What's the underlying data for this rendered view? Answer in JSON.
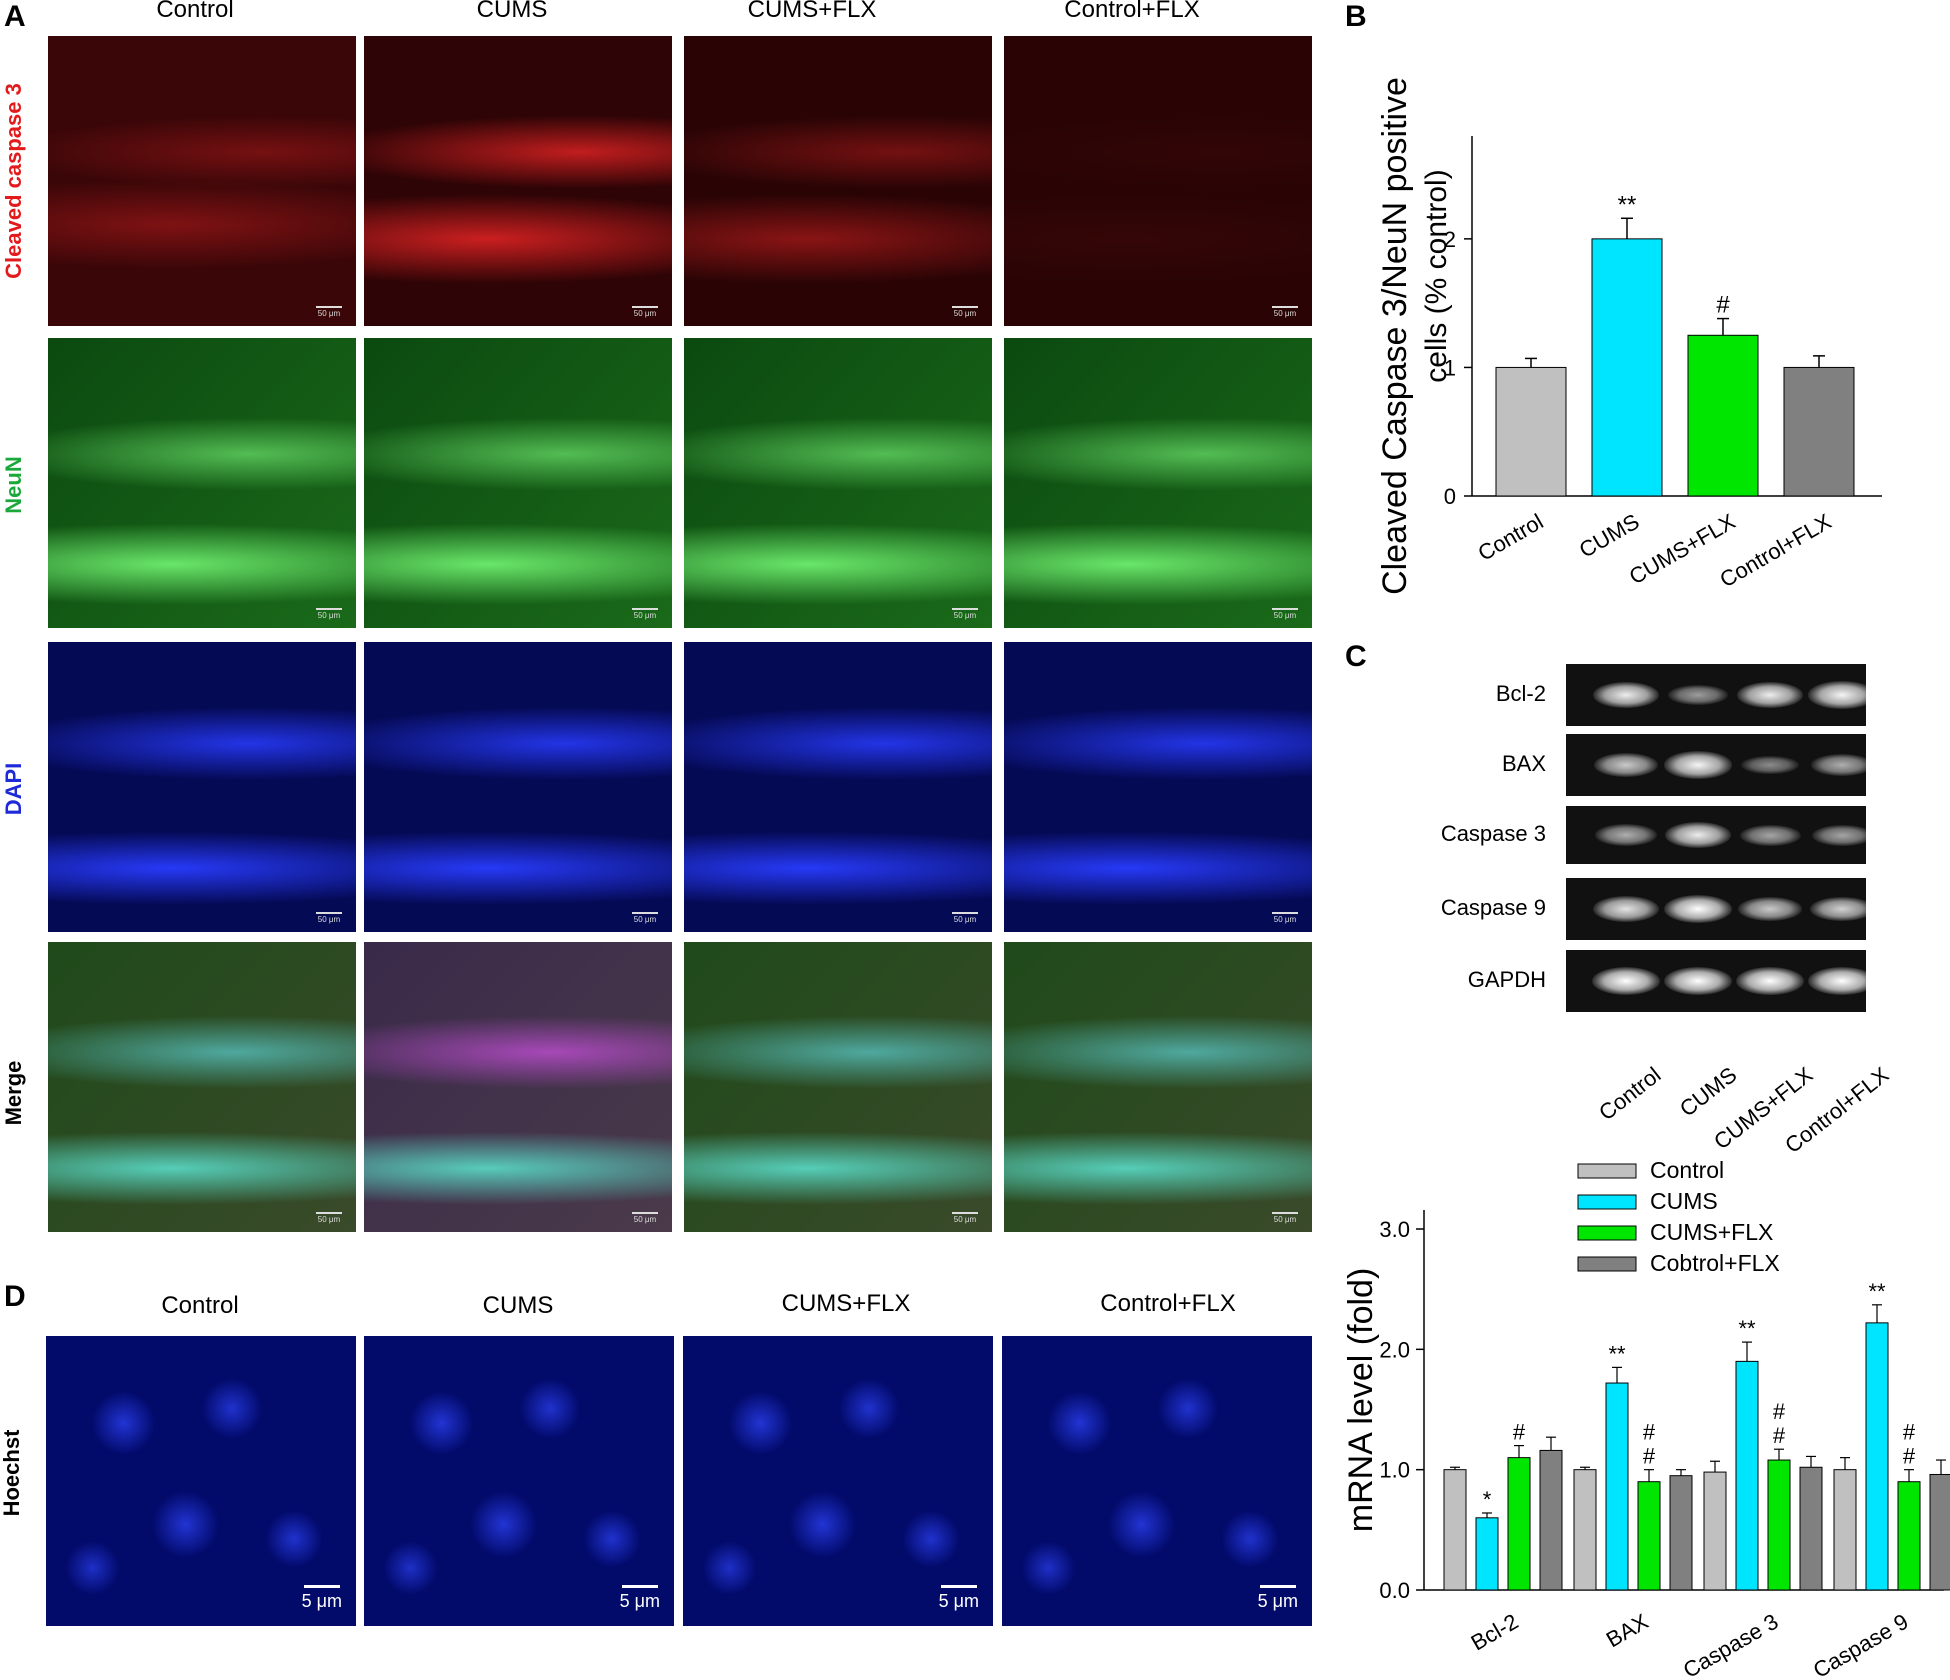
{
  "panel_letters": {
    "a": "A",
    "b": "B",
    "c": "C",
    "d": "D"
  },
  "groups": [
    "Control",
    "CUMS",
    "CUMS+FLX",
    "Control+FLX"
  ],
  "panel_a": {
    "rows": [
      {
        "label": "Cleaved caspase 3",
        "color": "#e31a1c"
      },
      {
        "label": "NeuN",
        "color": "#1aa83a"
      },
      {
        "label": "DAPI",
        "color": "#1e2ad8"
      },
      {
        "label": "Merge",
        "color": "#000000"
      }
    ],
    "scale_bar": "50 μm"
  },
  "panel_d": {
    "row_label": "Hoechst",
    "scale_bar": "5 μm"
  },
  "panel_c_gel": {
    "genes": [
      "Bcl-2",
      "BAX",
      "Caspase 3",
      "Caspase 9",
      "GAPDH"
    ],
    "lanes": [
      "Control",
      "CUMS",
      "CUMS+FLX",
      "Control+FLX"
    ],
    "band_intensity": [
      [
        0.9,
        0.45,
        0.9,
        0.95
      ],
      [
        0.7,
        0.95,
        0.35,
        0.55
      ],
      [
        0.55,
        0.9,
        0.5,
        0.5
      ],
      [
        0.85,
        1.0,
        0.7,
        0.75
      ],
      [
        1.0,
        1.0,
        1.0,
        1.0
      ]
    ]
  },
  "chart_data": [
    {
      "type": "bar",
      "panel": "B",
      "ylabel_line1": "Cleaved Caspase 3/NeuN positive",
      "ylabel_line2": "cells  (% control)",
      "categories": [
        "Control",
        "CUMS",
        "CUMS+FLX",
        "Control+FLX"
      ],
      "values": [
        1.0,
        2.0,
        1.25,
        1.0
      ],
      "errors": [
        0.07,
        0.16,
        0.13,
        0.09
      ],
      "colors": [
        "#c0c0c0",
        "#00e5ff",
        "#00e600",
        "#808080"
      ],
      "annotations": [
        "",
        "**",
        "#",
        ""
      ],
      "ylim": [
        0,
        2.8
      ],
      "yticks": [
        0,
        1,
        2
      ]
    },
    {
      "type": "bar",
      "panel": "C",
      "ylabel": "mRNA level (fold)",
      "categories": [
        "Bcl-2",
        "BAX",
        "Caspase 3",
        "Caspase 9"
      ],
      "series": [
        {
          "name": "Control",
          "color": "#c0c0c0",
          "values": [
            1.0,
            1.0,
            0.98,
            1.0
          ],
          "errors": [
            0.02,
            0.02,
            0.09,
            0.1
          ]
        },
        {
          "name": "CUMS",
          "color": "#00e5ff",
          "values": [
            0.6,
            1.72,
            1.9,
            2.22
          ],
          "errors": [
            0.04,
            0.13,
            0.16,
            0.15
          ]
        },
        {
          "name": "CUMS+FLX",
          "color": "#00e600",
          "values": [
            1.1,
            0.9,
            1.08,
            0.9
          ],
          "errors": [
            0.1,
            0.1,
            0.09,
            0.1
          ]
        },
        {
          "name": "Cobtrol+FLX",
          "color": "#808080",
          "values": [
            1.16,
            0.95,
            1.02,
            0.96
          ],
          "errors": [
            0.11,
            0.05,
            0.09,
            0.12
          ]
        }
      ],
      "annotations": [
        [
          "",
          "*",
          "#",
          ""
        ],
        [
          "",
          "**",
          "#\n#",
          ""
        ],
        [
          "",
          "**",
          "#\n#",
          ""
        ],
        [
          "",
          "**",
          "#\n#",
          ""
        ]
      ],
      "ylim": [
        0,
        3.0
      ],
      "yticks": [
        "0.0",
        "1.0",
        "2.0",
        "3.0"
      ],
      "legend_position": "top"
    }
  ]
}
